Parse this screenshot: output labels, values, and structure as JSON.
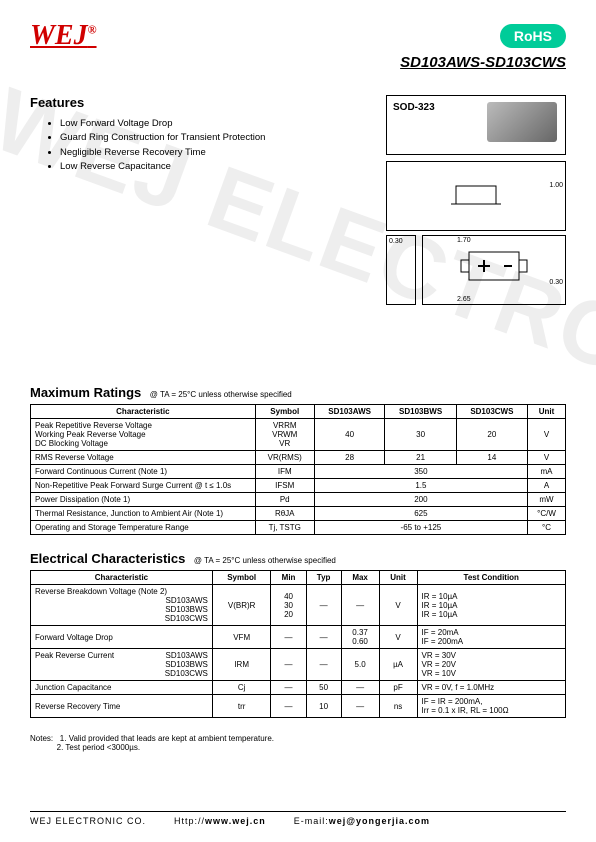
{
  "brand": "WEJ",
  "reg": "®",
  "rohs": "RoHS",
  "partno": "SD103AWS-SD103CWS",
  "features_title": "Features",
  "features": [
    "Low Forward Voltage Drop",
    "Guard Ring Construction for Transient Protection",
    "Negligible Reverse Recovery Time",
    "Low Reverse Capacitance"
  ],
  "package_label": "SOD-323",
  "dims": {
    "w": "1.70",
    "l": "2.65",
    "h": "1.00",
    "pad": "0.30",
    "gap": "0.30"
  },
  "ratings": {
    "title": "Maximum Ratings",
    "cond": "@ TA = 25°C unless otherwise specified",
    "headers": [
      "Characteristic",
      "Symbol",
      "SD103AWS",
      "SD103BWS",
      "SD103CWS",
      "Unit"
    ],
    "rows": [
      {
        "c": "Peak Repetitive Reverse Voltage\nWorking Peak Reverse Voltage\nDC Blocking Voltage",
        "s": "VRRM\nVRWM\nVR",
        "v": [
          "40",
          "30",
          "20"
        ],
        "u": "V"
      },
      {
        "c": "RMS Reverse Voltage",
        "s": "VR(RMS)",
        "v": [
          "28",
          "21",
          "14"
        ],
        "u": "V"
      },
      {
        "c": "Forward Continuous Current (Note 1)",
        "s": "IFM",
        "span": "350",
        "u": "mA"
      },
      {
        "c": "Non-Repetitive Peak Forward Surge Current    @ t ≤ 1.0s",
        "s": "IFSM",
        "span": "1.5",
        "u": "A"
      },
      {
        "c": "Power Dissipation (Note 1)",
        "s": "Pd",
        "span": "200",
        "u": "mW"
      },
      {
        "c": "Thermal Resistance, Junction to Ambient Air (Note 1)",
        "s": "RθJA",
        "span": "625",
        "u": "°C/W"
      },
      {
        "c": "Operating and Storage Temperature Range",
        "s": "Tj, TSTG",
        "span": "-65 to +125",
        "u": "°C"
      }
    ]
  },
  "elec": {
    "title": "Electrical Characteristics",
    "cond": "@ TA = 25°C unless otherwise specified",
    "headers": [
      "Characteristic",
      "Symbol",
      "Min",
      "Typ",
      "Max",
      "Unit",
      "Test Condition"
    ],
    "rows": [
      {
        "c": "Reverse Breakdown Voltage (Note 2)",
        "parts": "SD103AWS\nSD103BWS\nSD103CWS",
        "s": "V(BR)R",
        "min": "40\n30\n20",
        "typ": "—",
        "max": "—",
        "u": "V",
        "tc": "IR = 10µA\nIR = 10µA\nIR = 10µA"
      },
      {
        "c": "Forward Voltage Drop",
        "parts": "",
        "s": "VFM",
        "min": "—",
        "typ": "—",
        "max": "0.37\n0.60",
        "u": "V",
        "tc": "IF = 20mA\nIF = 200mA"
      },
      {
        "c": "Peak Reverse Current",
        "parts": "SD103AWS\nSD103BWS\nSD103CWS",
        "s": "IRM",
        "min": "—",
        "typ": "—",
        "max": "5.0",
        "u": "µA",
        "tc": "VR = 30V\nVR = 20V\nVR = 10V"
      },
      {
        "c": "Junction Capacitance",
        "parts": "",
        "s": "Cj",
        "min": "—",
        "typ": "50",
        "max": "—",
        "u": "pF",
        "tc": "VR = 0V, f = 1.0MHz"
      },
      {
        "c": "Reverse Recovery Time",
        "parts": "",
        "s": "trr",
        "min": "—",
        "typ": "10",
        "max": "—",
        "u": "ns",
        "tc": "IF = IR = 200mA,\nIrr = 0.1 x IR, RL = 100Ω"
      }
    ]
  },
  "notes_label": "Notes:",
  "notes": [
    "1. Valid provided that leads are kept at ambient temperature.",
    "2. Test period <3000µs."
  ],
  "footer": {
    "company": "WEJ ELECTRONIC CO.",
    "url_label": "Http://",
    "url": "www.wej.cn",
    "email_label": "E-mail:",
    "email": "wej@yongerjia.com"
  }
}
